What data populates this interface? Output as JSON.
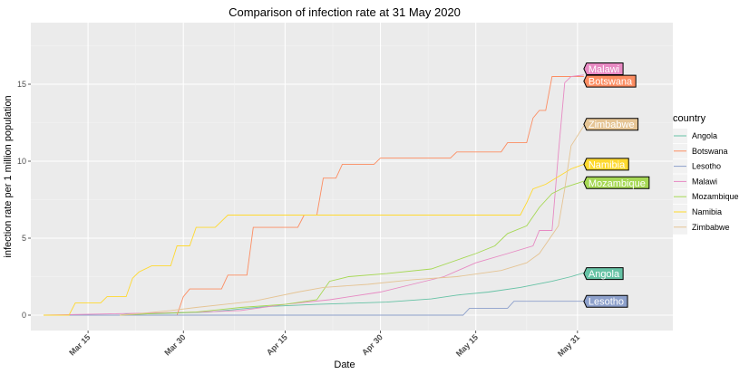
{
  "chart_data": {
    "type": "line",
    "title": "Comparison of infection rate at 31 May 2020",
    "xlabel": "Date",
    "ylabel": "infection rate per 1 million population",
    "x_axis": {
      "type": "date",
      "range": [
        "2020-03-06",
        "2020-06-15"
      ],
      "ticks": [
        {
          "date": "2020-03-15",
          "label": "Mar 15"
        },
        {
          "date": "2020-03-30",
          "label": "Mar 30"
        },
        {
          "date": "2020-04-15",
          "label": "Apr 15"
        },
        {
          "date": "2020-04-30",
          "label": "Apr 30"
        },
        {
          "date": "2020-05-15",
          "label": "May 15"
        },
        {
          "date": "2020-05-31",
          "label": "May 31"
        }
      ]
    },
    "y_axis": {
      "range": [
        -1,
        19
      ],
      "ticks": [
        0,
        5,
        10,
        15
      ]
    },
    "grid": true,
    "legend": {
      "title": "country",
      "position": "right"
    },
    "series": [
      {
        "name": "Angola",
        "color": "#66C2A5",
        "points": [
          [
            "2020-03-20",
            0
          ],
          [
            "2020-03-21",
            0.06
          ],
          [
            "2020-03-26",
            0.1
          ],
          [
            "2020-03-30",
            0.15
          ],
          [
            "2020-04-03",
            0.2
          ],
          [
            "2020-04-08",
            0.4
          ],
          [
            "2020-04-12",
            0.55
          ],
          [
            "2020-04-20",
            0.7
          ],
          [
            "2020-05-01",
            0.85
          ],
          [
            "2020-05-08",
            1.05
          ],
          [
            "2020-05-12",
            1.3
          ],
          [
            "2020-05-17",
            1.5
          ],
          [
            "2020-05-22",
            1.8
          ],
          [
            "2020-05-27",
            2.2
          ],
          [
            "2020-05-30",
            2.5
          ],
          [
            "2020-06-01",
            2.75
          ]
        ]
      },
      {
        "name": "Botswana",
        "color": "#FC8D62",
        "points": [
          [
            "2020-03-08",
            0
          ],
          [
            "2020-03-29",
            0
          ],
          [
            "2020-03-30",
            1.2
          ],
          [
            "2020-03-31",
            1.7
          ],
          [
            "2020-04-05",
            1.7
          ],
          [
            "2020-04-06",
            2.6
          ],
          [
            "2020-04-09",
            2.6
          ],
          [
            "2020-04-10",
            5.7
          ],
          [
            "2020-04-17",
            5.7
          ],
          [
            "2020-04-18",
            6.5
          ],
          [
            "2020-04-20",
            6.5
          ],
          [
            "2020-04-21",
            8.9
          ],
          [
            "2020-04-23",
            8.9
          ],
          [
            "2020-04-24",
            9.8
          ],
          [
            "2020-04-29",
            9.8
          ],
          [
            "2020-04-30",
            10.2
          ],
          [
            "2020-05-11",
            10.2
          ],
          [
            "2020-05-12",
            10.6
          ],
          [
            "2020-05-19",
            10.6
          ],
          [
            "2020-05-20",
            11.2
          ],
          [
            "2020-05-23",
            11.2
          ],
          [
            "2020-05-24",
            12.8
          ],
          [
            "2020-05-25",
            13.3
          ],
          [
            "2020-05-26",
            13.3
          ],
          [
            "2020-05-27",
            15.5
          ],
          [
            "2020-06-01",
            15.5
          ]
        ]
      },
      {
        "name": "Lesotho",
        "color": "#8DA0CB",
        "points": [
          [
            "2020-03-08",
            0
          ],
          [
            "2020-05-13",
            0
          ],
          [
            "2020-05-14",
            0.45
          ],
          [
            "2020-05-20",
            0.45
          ],
          [
            "2020-05-21",
            0.9
          ],
          [
            "2020-06-01",
            0.9
          ]
        ]
      },
      {
        "name": "Malawi",
        "color": "#E78AC3",
        "points": [
          [
            "2020-03-08",
            0
          ],
          [
            "2020-04-02",
            0.2
          ],
          [
            "2020-04-08",
            0.3
          ],
          [
            "2020-04-15",
            0.7
          ],
          [
            "2020-04-22",
            1.0
          ],
          [
            "2020-04-30",
            1.5
          ],
          [
            "2020-05-05",
            2.0
          ],
          [
            "2020-05-10",
            2.5
          ],
          [
            "2020-05-15",
            3.4
          ],
          [
            "2020-05-20",
            4.0
          ],
          [
            "2020-05-24",
            4.5
          ],
          [
            "2020-05-25",
            5.5
          ],
          [
            "2020-05-27",
            5.5
          ],
          [
            "2020-05-28",
            10.5
          ],
          [
            "2020-05-29",
            15.1
          ],
          [
            "2020-05-30",
            15.5
          ],
          [
            "2020-06-01",
            15.6
          ]
        ]
      },
      {
        "name": "Mozambique",
        "color": "#A6D854",
        "points": [
          [
            "2020-03-20",
            0
          ],
          [
            "2020-03-25",
            0.1
          ],
          [
            "2020-04-01",
            0.2
          ],
          [
            "2020-04-08",
            0.5
          ],
          [
            "2020-04-15",
            0.7
          ],
          [
            "2020-04-20",
            1.0
          ],
          [
            "2020-04-22",
            2.2
          ],
          [
            "2020-04-25",
            2.5
          ],
          [
            "2020-05-01",
            2.7
          ],
          [
            "2020-05-08",
            3.0
          ],
          [
            "2020-05-15",
            4.0
          ],
          [
            "2020-05-18",
            4.5
          ],
          [
            "2020-05-20",
            5.3
          ],
          [
            "2020-05-23",
            5.8
          ],
          [
            "2020-05-25",
            7.0
          ],
          [
            "2020-05-27",
            7.9
          ],
          [
            "2020-05-29",
            8.3
          ],
          [
            "2020-06-01",
            8.7
          ]
        ]
      },
      {
        "name": "Namibia",
        "color": "#FFD92F",
        "points": [
          [
            "2020-03-08",
            0
          ],
          [
            "2020-03-12",
            0
          ],
          [
            "2020-03-13",
            0.8
          ],
          [
            "2020-03-17",
            0.8
          ],
          [
            "2020-03-18",
            1.2
          ],
          [
            "2020-03-21",
            1.2
          ],
          [
            "2020-03-22",
            2.4
          ],
          [
            "2020-03-23",
            2.8
          ],
          [
            "2020-03-25",
            3.2
          ],
          [
            "2020-03-28",
            3.2
          ],
          [
            "2020-03-29",
            4.5
          ],
          [
            "2020-03-31",
            4.5
          ],
          [
            "2020-04-01",
            5.7
          ],
          [
            "2020-04-04",
            5.7
          ],
          [
            "2020-04-05",
            6.1
          ],
          [
            "2020-04-06",
            6.5
          ],
          [
            "2020-05-22",
            6.5
          ],
          [
            "2020-05-23",
            7.3
          ],
          [
            "2020-05-24",
            8.2
          ],
          [
            "2020-05-26",
            8.5
          ],
          [
            "2020-05-28",
            9.0
          ],
          [
            "2020-05-30",
            9.5
          ],
          [
            "2020-06-01",
            9.8
          ]
        ]
      },
      {
        "name": "Zimbabwe",
        "color": "#E5C494",
        "points": [
          [
            "2020-03-20",
            0
          ],
          [
            "2020-03-23",
            0.1
          ],
          [
            "2020-03-28",
            0.3
          ],
          [
            "2020-04-01",
            0.5
          ],
          [
            "2020-04-10",
            0.9
          ],
          [
            "2020-04-17",
            1.5
          ],
          [
            "2020-04-21",
            1.8
          ],
          [
            "2020-04-28",
            2.0
          ],
          [
            "2020-05-05",
            2.3
          ],
          [
            "2020-05-12",
            2.5
          ],
          [
            "2020-05-19",
            2.9
          ],
          [
            "2020-05-23",
            3.4
          ],
          [
            "2020-05-25",
            4.0
          ],
          [
            "2020-05-28",
            5.8
          ],
          [
            "2020-05-29",
            8.2
          ],
          [
            "2020-05-30",
            11.0
          ],
          [
            "2020-06-01",
            12.3
          ]
        ]
      }
    ],
    "end_labels": [
      {
        "text": "Malawi",
        "value": 16.0,
        "color": "#E78AC3"
      },
      {
        "text": "Botswana",
        "value": 15.2,
        "color": "#FC8D62"
      },
      {
        "text": "Zimbabwe",
        "value": 12.4,
        "color": "#E5C494"
      },
      {
        "text": "Namibia",
        "value": 9.8,
        "color": "#FFD92F"
      },
      {
        "text": "Mozambique",
        "value": 8.6,
        "color": "#A6D854"
      },
      {
        "text": "Angola",
        "value": 2.7,
        "color": "#66C2A5"
      },
      {
        "text": "Lesotho",
        "value": 0.9,
        "color": "#8DA0CB"
      }
    ]
  }
}
